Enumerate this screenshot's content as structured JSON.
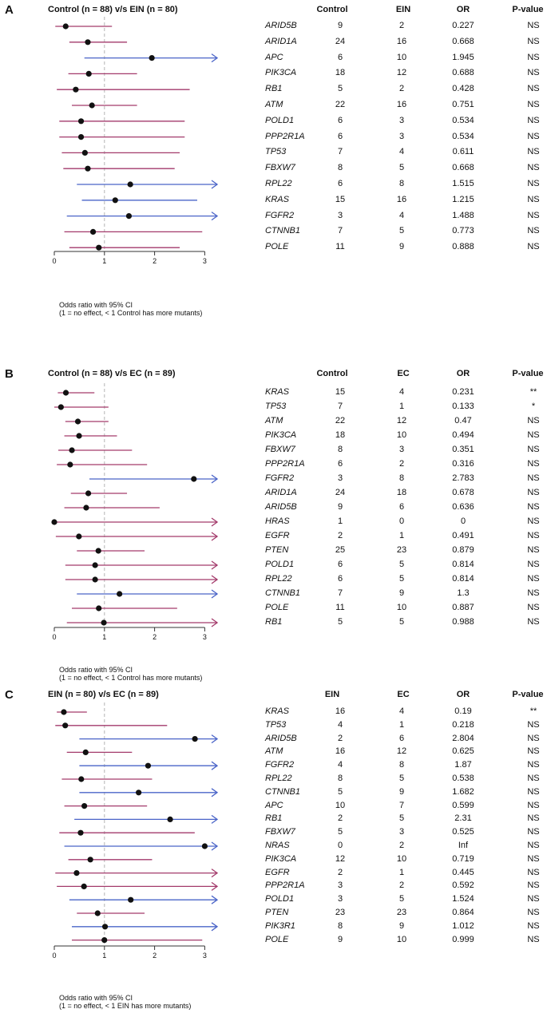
{
  "colors": {
    "purple": "#a33a6b",
    "blue": "#4a64c8",
    "dot": "#111111",
    "refline": "#b5b5b5"
  },
  "chart_data": [
    {
      "type": "forest",
      "panel_label": "A",
      "title": "Control (n = 88) v/s EIN (n = 80)",
      "col_heads": [
        "Control",
        "EIN",
        "OR",
        "P-value"
      ],
      "xlim": [
        0,
        3.3
      ],
      "x_ticks": [
        "0",
        "1",
        "2",
        "3"
      ],
      "reference_line": 1,
      "note": [
        "Odds ratio with 95% CI",
        "(1 = no effect, < 1 Control has more mutants)"
      ],
      "rows": [
        {
          "gene": "ARID5B",
          "n1": "9",
          "n2": "2",
          "or_text": "0.227",
          "p": "NS",
          "or": 0.227,
          "lo": 0.02,
          "hi": 1.15,
          "arrow": false,
          "color": "purple"
        },
        {
          "gene": "ARID1A",
          "n1": "24",
          "n2": "16",
          "or_text": "0.668",
          "p": "NS",
          "or": 0.668,
          "lo": 0.3,
          "hi": 1.45,
          "arrow": false,
          "color": "purple"
        },
        {
          "gene": "APC",
          "n1": "6",
          "n2": "10",
          "or_text": "1.945",
          "p": "NS",
          "or": 1.945,
          "lo": 0.6,
          "hi": 3.3,
          "arrow": true,
          "color": "blue"
        },
        {
          "gene": "PIK3CA",
          "n1": "18",
          "n2": "12",
          "or_text": "0.688",
          "p": "NS",
          "or": 0.688,
          "lo": 0.28,
          "hi": 1.65,
          "arrow": false,
          "color": "purple"
        },
        {
          "gene": "RB1",
          "n1": "5",
          "n2": "2",
          "or_text": "0.428",
          "p": "NS",
          "or": 0.428,
          "lo": 0.05,
          "hi": 2.7,
          "arrow": false,
          "color": "purple"
        },
        {
          "gene": "ATM",
          "n1": "22",
          "n2": "16",
          "or_text": "0.751",
          "p": "NS",
          "or": 0.751,
          "lo": 0.35,
          "hi": 1.65,
          "arrow": false,
          "color": "purple"
        },
        {
          "gene": "POLD1",
          "n1": "6",
          "n2": "3",
          "or_text": "0.534",
          "p": "NS",
          "or": 0.534,
          "lo": 0.1,
          "hi": 2.6,
          "arrow": false,
          "color": "purple"
        },
        {
          "gene": "PPP2R1A",
          "n1": "6",
          "n2": "3",
          "or_text": "0.534",
          "p": "NS",
          "or": 0.534,
          "lo": 0.1,
          "hi": 2.6,
          "arrow": false,
          "color": "purple"
        },
        {
          "gene": "TP53",
          "n1": "7",
          "n2": "4",
          "or_text": "0.611",
          "p": "NS",
          "or": 0.611,
          "lo": 0.15,
          "hi": 2.5,
          "arrow": false,
          "color": "purple"
        },
        {
          "gene": "FBXW7",
          "n1": "8",
          "n2": "5",
          "or_text": "0.668",
          "p": "NS",
          "or": 0.668,
          "lo": 0.18,
          "hi": 2.4,
          "arrow": false,
          "color": "purple"
        },
        {
          "gene": "RPL22",
          "n1": "6",
          "n2": "8",
          "or_text": "1.515",
          "p": "NS",
          "or": 1.515,
          "lo": 0.45,
          "hi": 3.3,
          "arrow": true,
          "color": "blue"
        },
        {
          "gene": "KRAS",
          "n1": "15",
          "n2": "16",
          "or_text": "1.215",
          "p": "NS",
          "or": 1.215,
          "lo": 0.55,
          "hi": 2.85,
          "arrow": false,
          "color": "blue"
        },
        {
          "gene": "FGFR2",
          "n1": "3",
          "n2": "4",
          "or_text": "1.488",
          "p": "NS",
          "or": 1.488,
          "lo": 0.25,
          "hi": 3.3,
          "arrow": true,
          "color": "blue"
        },
        {
          "gene": "CTNNB1",
          "n1": "7",
          "n2": "5",
          "or_text": "0.773",
          "p": "NS",
          "or": 0.773,
          "lo": 0.2,
          "hi": 2.95,
          "arrow": false,
          "color": "purple"
        },
        {
          "gene": "POLE",
          "n1": "11",
          "n2": "9",
          "or_text": "0.888",
          "p": "NS",
          "or": 0.888,
          "lo": 0.3,
          "hi": 2.5,
          "arrow": false,
          "color": "purple"
        }
      ]
    },
    {
      "type": "forest",
      "panel_label": "B",
      "title": "Control (n = 88) v/s EC (n = 89)",
      "col_heads": [
        "Control",
        "EC",
        "OR",
        "P-value"
      ],
      "xlim": [
        0,
        3.3
      ],
      "x_ticks": [
        "0",
        "1",
        "2",
        "3"
      ],
      "reference_line": 1,
      "note": [
        "Odds ratio with 95% CI",
        "(1 = no effect, < 1 Control has more mutants)"
      ],
      "rows": [
        {
          "gene": "KRAS",
          "n1": "15",
          "n2": "4",
          "or_text": "0.231",
          "p": "**",
          "or": 0.231,
          "lo": 0.07,
          "hi": 0.8,
          "arrow": false,
          "color": "purple"
        },
        {
          "gene": "TP53",
          "n1": "7",
          "n2": "1",
          "or_text": "0.133",
          "p": "*",
          "or": 0.133,
          "lo": 0.0,
          "hi": 1.08,
          "arrow": false,
          "color": "purple"
        },
        {
          "gene": "ATM",
          "n1": "22",
          "n2": "12",
          "or_text": "0.47",
          "p": "NS",
          "or": 0.47,
          "lo": 0.22,
          "hi": 1.08,
          "arrow": false,
          "color": "purple"
        },
        {
          "gene": "PIK3CA",
          "n1": "18",
          "n2": "10",
          "or_text": "0.494",
          "p": "NS",
          "or": 0.494,
          "lo": 0.2,
          "hi": 1.25,
          "arrow": false,
          "color": "purple"
        },
        {
          "gene": "FBXW7",
          "n1": "8",
          "n2": "3",
          "or_text": "0.351",
          "p": "NS",
          "or": 0.351,
          "lo": 0.08,
          "hi": 1.55,
          "arrow": false,
          "color": "purple"
        },
        {
          "gene": "PPP2R1A",
          "n1": "6",
          "n2": "2",
          "or_text": "0.316",
          "p": "NS",
          "or": 0.316,
          "lo": 0.05,
          "hi": 1.85,
          "arrow": false,
          "color": "purple"
        },
        {
          "gene": "FGFR2",
          "n1": "3",
          "n2": "8",
          "or_text": "2.783",
          "p": "NS",
          "or": 2.783,
          "lo": 0.7,
          "hi": 3.3,
          "arrow": true,
          "color": "blue"
        },
        {
          "gene": "ARID1A",
          "n1": "24",
          "n2": "18",
          "or_text": "0.678",
          "p": "NS",
          "or": 0.678,
          "lo": 0.33,
          "hi": 1.45,
          "arrow": false,
          "color": "purple"
        },
        {
          "gene": "ARID5B",
          "n1": "9",
          "n2": "6",
          "or_text": "0.636",
          "p": "NS",
          "or": 0.636,
          "lo": 0.2,
          "hi": 2.1,
          "arrow": false,
          "color": "purple"
        },
        {
          "gene": "HRAS",
          "n1": "1",
          "n2": "0",
          "or_text": "0",
          "p": "NS",
          "or": 0,
          "lo": 0.0,
          "hi": 3.3,
          "arrow": true,
          "color": "purple"
        },
        {
          "gene": "EGFR",
          "n1": "2",
          "n2": "1",
          "or_text": "0.491",
          "p": "NS",
          "or": 0.491,
          "lo": 0.03,
          "hi": 3.3,
          "arrow": true,
          "color": "purple"
        },
        {
          "gene": "PTEN",
          "n1": "25",
          "n2": "23",
          "or_text": "0.879",
          "p": "NS",
          "or": 0.879,
          "lo": 0.45,
          "hi": 1.8,
          "arrow": false,
          "color": "purple"
        },
        {
          "gene": "POLD1",
          "n1": "6",
          "n2": "5",
          "or_text": "0.814",
          "p": "NS",
          "or": 0.814,
          "lo": 0.22,
          "hi": 3.3,
          "arrow": true,
          "color": "purple"
        },
        {
          "gene": "RPL22",
          "n1": "6",
          "n2": "5",
          "or_text": "0.814",
          "p": "NS",
          "or": 0.814,
          "lo": 0.22,
          "hi": 3.3,
          "arrow": true,
          "color": "purple"
        },
        {
          "gene": "CTNNB1",
          "n1": "7",
          "n2": "9",
          "or_text": "1.3",
          "p": "NS",
          "or": 1.3,
          "lo": 0.45,
          "hi": 3.3,
          "arrow": true,
          "color": "blue"
        },
        {
          "gene": "POLE",
          "n1": "11",
          "n2": "10",
          "or_text": "0.887",
          "p": "NS",
          "or": 0.887,
          "lo": 0.35,
          "hi": 2.45,
          "arrow": false,
          "color": "purple"
        },
        {
          "gene": "RB1",
          "n1": "5",
          "n2": "5",
          "or_text": "0.988",
          "p": "NS",
          "or": 0.988,
          "lo": 0.25,
          "hi": 3.3,
          "arrow": true,
          "color": "purple"
        }
      ]
    },
    {
      "type": "forest",
      "panel_label": "C",
      "title": "EIN (n = 80) v/s EC (n = 89)",
      "col_heads": [
        "EIN",
        "EC",
        "OR",
        "P-value"
      ],
      "xlim": [
        0,
        3.3
      ],
      "x_ticks": [
        "0",
        "1",
        "2",
        "3"
      ],
      "reference_line": 1,
      "note": [
        "Odds ratio with 95% CI",
        "(1 = no effect, < 1 EIN has more mutants)"
      ],
      "rows": [
        {
          "gene": "KRAS",
          "n1": "16",
          "n2": "4",
          "or_text": "0.19",
          "p": "**",
          "or": 0.19,
          "lo": 0.05,
          "hi": 0.65,
          "arrow": false,
          "color": "purple"
        },
        {
          "gene": "TP53",
          "n1": "4",
          "n2": "1",
          "or_text": "0.218",
          "p": "NS",
          "or": 0.218,
          "lo": 0.02,
          "hi": 2.25,
          "arrow": false,
          "color": "purple"
        },
        {
          "gene": "ARID5B",
          "n1": "2",
          "n2": "6",
          "or_text": "2.804",
          "p": "NS",
          "or": 2.804,
          "lo": 0.5,
          "hi": 3.3,
          "arrow": true,
          "color": "blue"
        },
        {
          "gene": "ATM",
          "n1": "16",
          "n2": "12",
          "or_text": "0.625",
          "p": "NS",
          "or": 0.625,
          "lo": 0.25,
          "hi": 1.55,
          "arrow": false,
          "color": "purple"
        },
        {
          "gene": "FGFR2",
          "n1": "4",
          "n2": "8",
          "or_text": "1.87",
          "p": "NS",
          "or": 1.87,
          "lo": 0.5,
          "hi": 3.3,
          "arrow": true,
          "color": "blue"
        },
        {
          "gene": "RPL22",
          "n1": "8",
          "n2": "5",
          "or_text": "0.538",
          "p": "NS",
          "or": 0.538,
          "lo": 0.15,
          "hi": 1.95,
          "arrow": false,
          "color": "purple"
        },
        {
          "gene": "CTNNB1",
          "n1": "5",
          "n2": "9",
          "or_text": "1.682",
          "p": "NS",
          "or": 1.682,
          "lo": 0.5,
          "hi": 3.3,
          "arrow": true,
          "color": "blue"
        },
        {
          "gene": "APC",
          "n1": "10",
          "n2": "7",
          "or_text": "0.599",
          "p": "NS",
          "or": 0.599,
          "lo": 0.2,
          "hi": 1.85,
          "arrow": false,
          "color": "purple"
        },
        {
          "gene": "RB1",
          "n1": "2",
          "n2": "5",
          "or_text": "2.31",
          "p": "NS",
          "or": 2.31,
          "lo": 0.4,
          "hi": 3.3,
          "arrow": true,
          "color": "blue"
        },
        {
          "gene": "FBXW7",
          "n1": "5",
          "n2": "3",
          "or_text": "0.525",
          "p": "NS",
          "or": 0.525,
          "lo": 0.1,
          "hi": 2.8,
          "arrow": false,
          "color": "purple"
        },
        {
          "gene": "NRAS",
          "n1": "0",
          "n2": "2",
          "or_text": "Inf",
          "p": "NS",
          "or": 3.0,
          "lo": 0.2,
          "hi": 3.3,
          "arrow": true,
          "color": "blue"
        },
        {
          "gene": "PIK3CA",
          "n1": "12",
          "n2": "10",
          "or_text": "0.719",
          "p": "NS",
          "or": 0.719,
          "lo": 0.28,
          "hi": 1.95,
          "arrow": false,
          "color": "purple"
        },
        {
          "gene": "EGFR",
          "n1": "2",
          "n2": "1",
          "or_text": "0.445",
          "p": "NS",
          "or": 0.445,
          "lo": 0.02,
          "hi": 3.3,
          "arrow": true,
          "color": "purple"
        },
        {
          "gene": "PPP2R1A",
          "n1": "3",
          "n2": "2",
          "or_text": "0.592",
          "p": "NS",
          "or": 0.592,
          "lo": 0.05,
          "hi": 3.3,
          "arrow": true,
          "color": "purple"
        },
        {
          "gene": "POLD1",
          "n1": "3",
          "n2": "5",
          "or_text": "1.524",
          "p": "NS",
          "or": 1.524,
          "lo": 0.3,
          "hi": 3.3,
          "arrow": true,
          "color": "blue"
        },
        {
          "gene": "PTEN",
          "n1": "23",
          "n2": "23",
          "or_text": "0.864",
          "p": "NS",
          "or": 0.864,
          "lo": 0.45,
          "hi": 1.8,
          "arrow": false,
          "color": "purple"
        },
        {
          "gene": "PIK3R1",
          "n1": "8",
          "n2": "9",
          "or_text": "1.012",
          "p": "NS",
          "or": 1.012,
          "lo": 0.35,
          "hi": 3.3,
          "arrow": true,
          "color": "blue"
        },
        {
          "gene": "POLE",
          "n1": "9",
          "n2": "10",
          "or_text": "0.999",
          "p": "NS",
          "or": 0.999,
          "lo": 0.35,
          "hi": 2.95,
          "arrow": false,
          "color": "purple"
        }
      ]
    }
  ]
}
